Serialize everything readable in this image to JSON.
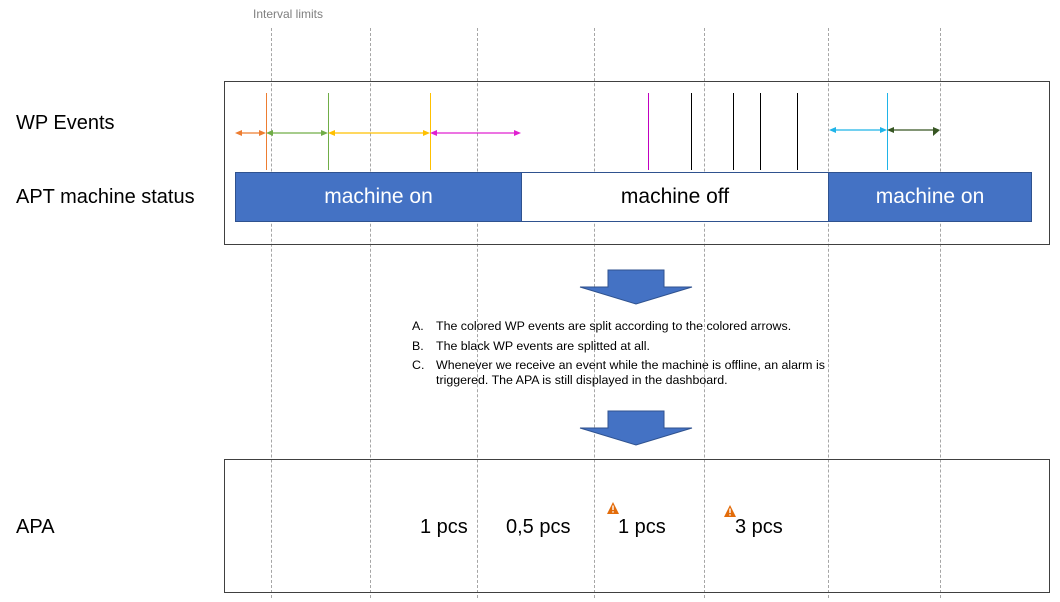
{
  "interval_label": "Interval limits",
  "rows": {
    "wp_events": "WP Events",
    "machine_status": "APT machine status",
    "apa": "APA"
  },
  "machine_status_segments": [
    {
      "label": "machine on",
      "state": "on"
    },
    {
      "label": "machine off",
      "state": "off"
    },
    {
      "label": "machine on",
      "state": "on"
    }
  ],
  "notes": [
    {
      "letter": "A.",
      "text": "The colored WP events are split according to the colored arrows."
    },
    {
      "letter": "B.",
      "text": "The black WP events are splitted at all."
    },
    {
      "letter": "C.",
      "text": "Whenever we receive an event while the machine is offline, an alarm is triggered. The APA is still displayed in the dashboard."
    }
  ],
  "apa_values": [
    {
      "label": "1 pcs",
      "alarm": false
    },
    {
      "label": "0,5 pcs",
      "alarm": false
    },
    {
      "label": "1 pcs",
      "alarm": true
    },
    {
      "label": "3 pcs",
      "alarm": true
    }
  ],
  "colors": {
    "machine_on": "#4472c4",
    "orange": "#ed7d31",
    "green": "#70ad47",
    "yellow": "#ffc000",
    "magenta": "#e020d0",
    "cyan": "#1fb4e8",
    "dark_green": "#375623",
    "alarm": "#e36c0a"
  }
}
